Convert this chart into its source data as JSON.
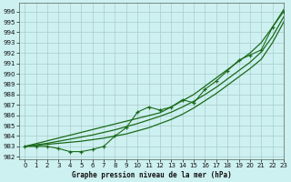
{
  "title": "Graphe pression niveau de la mer (hPa)",
  "bg_color": "#cdf0f0",
  "grid_color": "#aacccc",
  "line_color": "#1a6b1a",
  "xlim": [
    -0.5,
    23
  ],
  "ylim": [
    981.8,
    996.8
  ],
  "yticks": [
    982,
    983,
    984,
    985,
    986,
    987,
    988,
    989,
    990,
    991,
    992,
    993,
    994,
    995,
    996
  ],
  "xticks": [
    0,
    1,
    2,
    3,
    4,
    5,
    6,
    7,
    8,
    9,
    10,
    11,
    12,
    13,
    14,
    15,
    16,
    17,
    18,
    19,
    20,
    21,
    22,
    23
  ],
  "jagged": [
    983.0,
    983.0,
    983.0,
    982.8,
    982.5,
    982.5,
    982.7,
    983.0,
    984.0,
    984.8,
    986.3,
    986.8,
    986.5,
    986.8,
    987.5,
    987.2,
    988.5,
    989.3,
    990.3,
    991.3,
    991.8,
    992.3,
    994.5,
    996.0
  ],
  "smooth_upper": [
    983.0,
    983.27,
    983.54,
    983.81,
    984.08,
    984.35,
    984.62,
    984.89,
    985.16,
    985.43,
    985.7,
    985.97,
    986.24,
    986.8,
    987.4,
    988.0,
    988.8,
    989.6,
    990.4,
    991.2,
    992.0,
    993.0,
    994.5,
    996.2
  ],
  "smooth_lower": [
    983.0,
    983.1,
    983.2,
    983.3,
    983.4,
    983.5,
    983.65,
    983.8,
    984.0,
    984.2,
    984.5,
    984.8,
    985.2,
    985.6,
    986.1,
    986.7,
    987.4,
    988.1,
    988.9,
    989.7,
    990.5,
    991.4,
    993.0,
    995.0
  ],
  "smooth_mid": [
    983.0,
    983.15,
    983.3,
    983.5,
    983.7,
    983.9,
    984.1,
    984.35,
    984.6,
    984.9,
    985.2,
    985.55,
    985.9,
    986.3,
    986.8,
    987.35,
    988.0,
    988.7,
    989.5,
    990.3,
    991.1,
    992.1,
    993.6,
    995.5
  ]
}
